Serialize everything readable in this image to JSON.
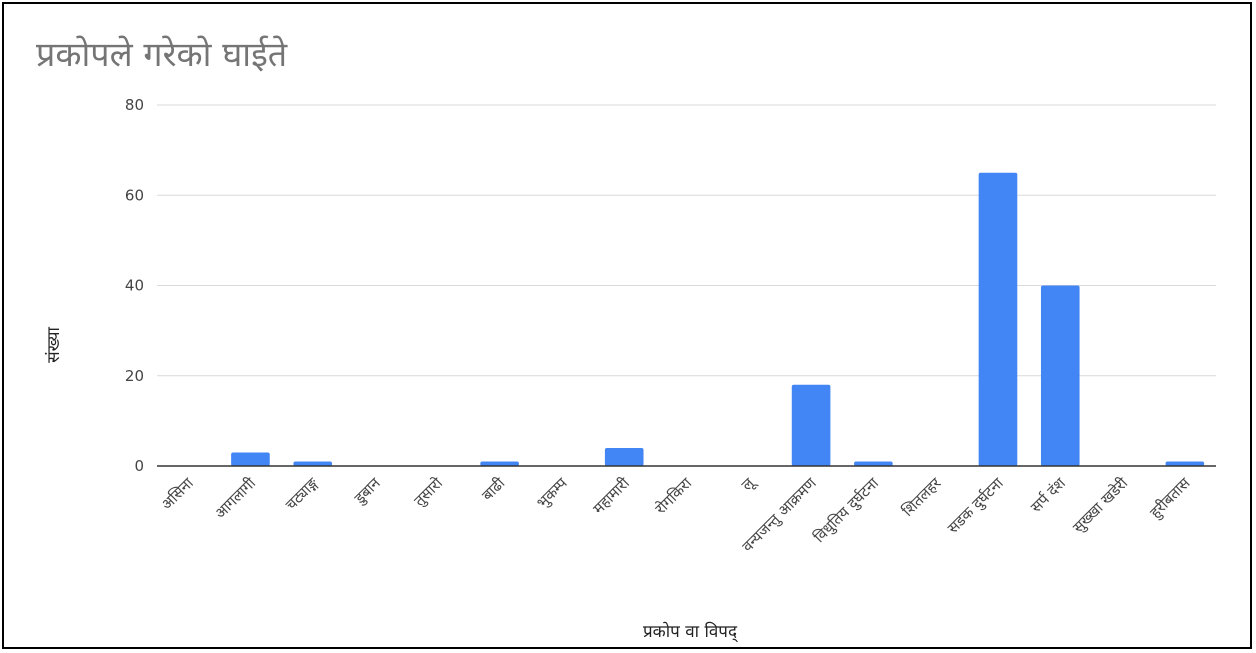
{
  "chart_data": {
    "type": "bar",
    "title": "प्रकोपले गरेको घाईते",
    "xlabel": "प्रकोप वा विपद्",
    "ylabel": "संख्या",
    "ylim": [
      0,
      80
    ],
    "yticks": [
      0,
      20,
      40,
      60,
      80
    ],
    "grid": true,
    "bar_color": "#4285f4",
    "gridline_color": "#d9d9d9",
    "baseline_color": "#333333",
    "categories": [
      "असिना",
      "आगलागी",
      "चट्याङ्ग",
      "डुबान",
      "तुसारो",
      "बाढी",
      "भुकम्प",
      "महामारी",
      "रोगकिरा",
      "लू",
      "वन्यजन्तु आक्रमण",
      "विधुतिय दुर्घटना",
      "शितलहर",
      "सडक दुर्घटना",
      "सर्प दंश",
      "सुख्खा खडेरी",
      "हुरीबतास"
    ],
    "values": [
      0,
      3,
      1,
      0,
      0,
      1,
      0,
      4,
      0,
      0,
      18,
      1,
      0,
      65,
      40,
      0,
      1
    ]
  }
}
